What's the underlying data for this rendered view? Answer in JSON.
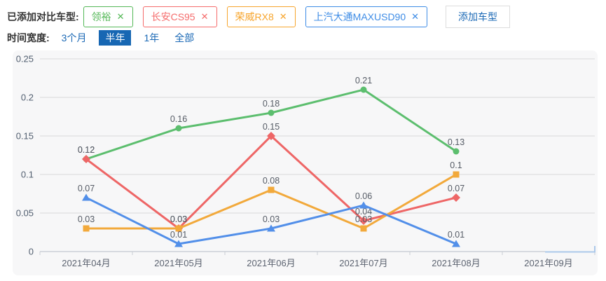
{
  "header": {
    "label": "已添加对比车型:",
    "close_icon": "✕",
    "tags": [
      {
        "name": "领裕",
        "color": "#54b857"
      },
      {
        "name": "长安CS95",
        "color": "#f56c6c"
      },
      {
        "name": "荣威RX8",
        "color": "#f7a52d"
      },
      {
        "name": "上汽大通MAXUSD90",
        "color": "#3e8ce6"
      }
    ],
    "add_button": "添加车型"
  },
  "time_filter": {
    "label": "时间宽度:",
    "options": [
      "3个月",
      "半年",
      "1年",
      "全部"
    ],
    "selected": "半年",
    "selected_bg": "#1767b3",
    "link_color": "#1a68b5"
  },
  "chart_data": {
    "type": "line",
    "title": "",
    "xlabel": "",
    "ylabel": "",
    "categories": [
      "2021年04月",
      "2021年05月",
      "2021年06月",
      "2021年07月",
      "2021年08月",
      "2021年09月"
    ],
    "series": [
      {
        "name": "领裕",
        "color": "#5cbe6e",
        "symbol": "circle",
        "values": [
          0.12,
          0.16,
          0.18,
          0.21,
          0.13,
          null
        ]
      },
      {
        "name": "长安CS95",
        "color": "#ee6666",
        "symbol": "diamond",
        "values": [
          0.12,
          0.03,
          0.15,
          0.04,
          0.07,
          null
        ]
      },
      {
        "name": "荣威RX8",
        "color": "#f2a93b",
        "symbol": "rect",
        "values": [
          0.03,
          0.03,
          0.08,
          0.03,
          0.1,
          null
        ]
      },
      {
        "name": "上汽大通MAXUSD90",
        "color": "#528fe9",
        "symbol": "triangle",
        "values": [
          0.07,
          0.01,
          0.03,
          0.06,
          0.01,
          null
        ]
      }
    ],
    "y_ticks": [
      0,
      0.05,
      0.1,
      0.15,
      0.2,
      0.25
    ],
    "ylim": [
      0,
      0.25
    ],
    "grid": true,
    "legend_position": "none"
  }
}
